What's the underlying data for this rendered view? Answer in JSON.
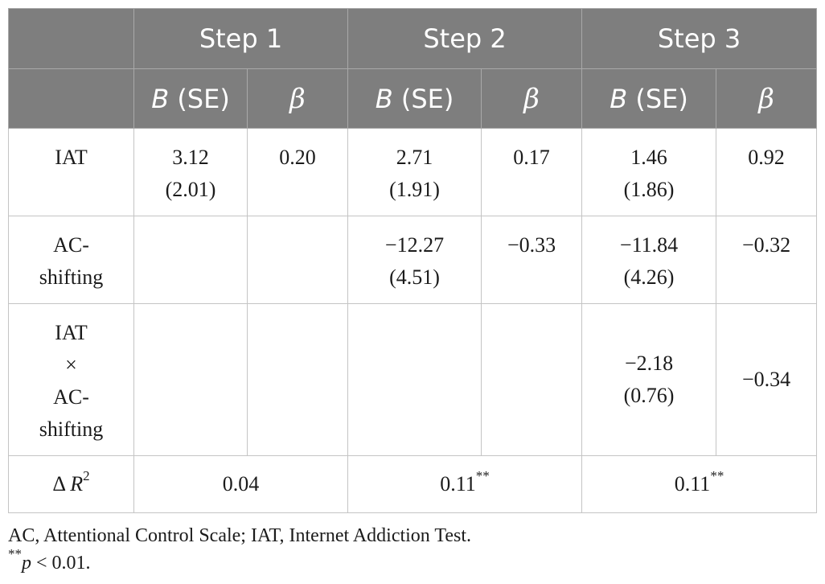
{
  "table": {
    "steps": [
      "Step 1",
      "Step 2",
      "Step 3"
    ],
    "subheaders": {
      "b_letter": "B",
      "b_rest": " (SE)",
      "beta": "β"
    },
    "rows": [
      {
        "label": [
          "IAT"
        ],
        "cells": [
          [
            "3.12",
            "(2.01)"
          ],
          [
            "0.20"
          ],
          [
            "2.71",
            "(1.91)"
          ],
          [
            "0.17"
          ],
          [
            "1.46",
            "(1.86)"
          ],
          [
            "0.92"
          ]
        ]
      },
      {
        "label": [
          "AC-",
          "shifting"
        ],
        "cells": [
          [],
          [],
          [
            "−12.27",
            "(4.51)"
          ],
          [
            "−0.33"
          ],
          [
            "−11.84",
            "(4.26)"
          ],
          [
            "−0.32"
          ]
        ]
      },
      {
        "label": [
          "IAT",
          "×",
          "AC-",
          "shifting"
        ],
        "cells": [
          [],
          [],
          [],
          [],
          [
            "−2.18",
            "(0.76)"
          ],
          [
            "−0.34"
          ]
        ]
      }
    ],
    "delta_r2": {
      "label_prefix": "Δ ",
      "label_var": "R",
      "label_sup": "2",
      "values": [
        {
          "value": "0.04",
          "stars": ""
        },
        {
          "value": "0.11",
          "stars": "**"
        },
        {
          "value": "0.11",
          "stars": "**"
        }
      ]
    }
  },
  "notes": {
    "abbreviations": "AC, Attentional Control Scale; IAT, Internet Addiction Test.",
    "sig_stars": "**",
    "sig_p": "p",
    "sig_rest": " < 0.01."
  }
}
